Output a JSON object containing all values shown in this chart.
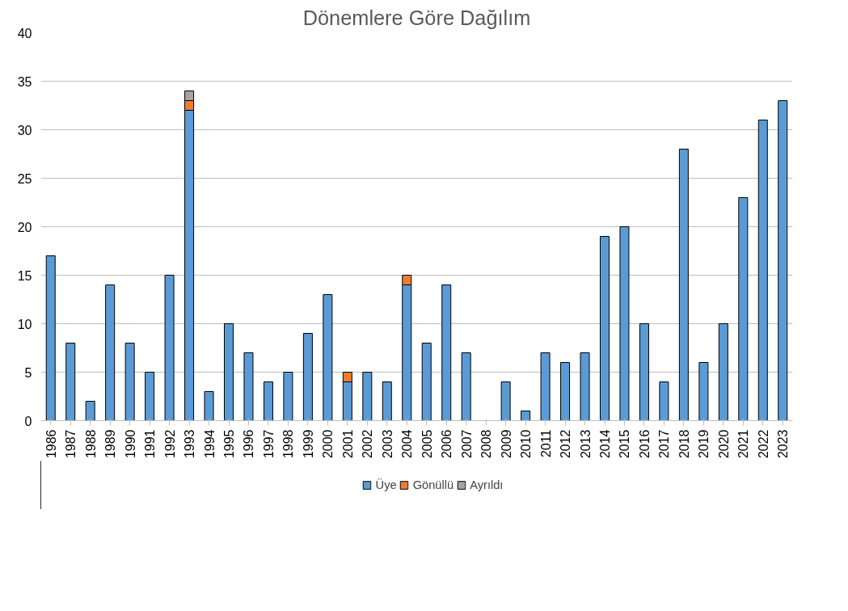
{
  "chart_data": {
    "type": "bar",
    "title": "Dönemlere Göre Dağılım",
    "stacked": true,
    "categories": [
      "1986",
      "1987",
      "1988",
      "1989",
      "1990",
      "1991",
      "1992",
      "1993",
      "1994",
      "1995",
      "1996",
      "1997",
      "1998",
      "1999",
      "2000",
      "2001",
      "2002",
      "2003",
      "2004",
      "2005",
      "2006",
      "2007",
      "2008",
      "2009",
      "2010",
      "2011",
      "2012",
      "2013",
      "2014",
      "2015",
      "2016",
      "2017",
      "2018",
      "2019",
      "2020",
      "2021",
      "2022",
      "2023"
    ],
    "series": [
      {
        "name": "Üye",
        "color": "#5b9bd5",
        "values": [
          17,
          8,
          2,
          14,
          8,
          5,
          15,
          32,
          3,
          10,
          7,
          4,
          5,
          9,
          13,
          4,
          5,
          4,
          14,
          8,
          14,
          7,
          0,
          4,
          1,
          7,
          6,
          7,
          19,
          20,
          10,
          4,
          28,
          6,
          10,
          23,
          31,
          33
        ]
      },
      {
        "name": "Gönüllü",
        "color": "#ed7d31",
        "values": [
          null,
          null,
          null,
          null,
          null,
          null,
          null,
          1,
          null,
          null,
          null,
          null,
          null,
          null,
          null,
          1,
          null,
          null,
          1,
          null,
          null,
          null,
          null,
          null,
          null,
          null,
          null,
          null,
          null,
          null,
          null,
          null,
          null,
          null,
          null,
          null,
          null,
          null
        ]
      },
      {
        "name": "Ayrıldı",
        "color": "#a5a5a5",
        "values": [
          null,
          null,
          null,
          null,
          null,
          null,
          null,
          1,
          null,
          null,
          null,
          null,
          null,
          null,
          null,
          null,
          null,
          null,
          null,
          null,
          null,
          null,
          null,
          null,
          null,
          null,
          null,
          null,
          null,
          null,
          null,
          null,
          null,
          null,
          null,
          null,
          null,
          null
        ]
      }
    ],
    "ylim": [
      0,
      40
    ],
    "yticks": [
      0,
      5,
      10,
      15,
      20,
      25,
      30,
      35,
      40
    ],
    "grid": "y",
    "legend": "bottom"
  }
}
